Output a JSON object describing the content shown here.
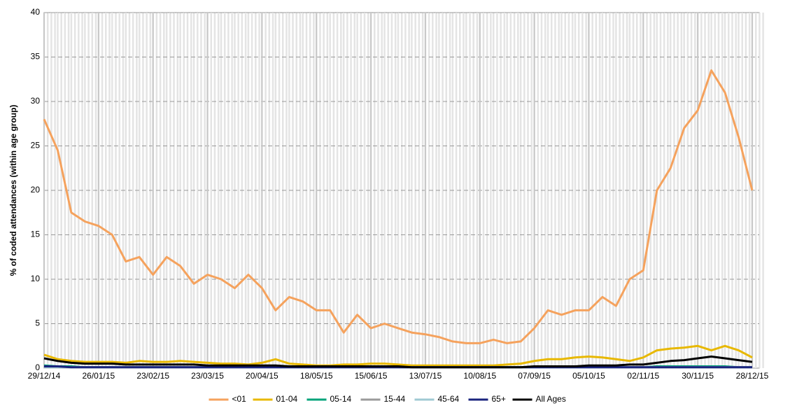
{
  "chart_data": {
    "type": "line",
    "y_label": "% of coded attendances (within age group)",
    "x": [
      "29/12/14",
      "05/01/15",
      "12/01/15",
      "19/01/15",
      "26/01/15",
      "02/02/15",
      "09/02/15",
      "16/02/15",
      "23/02/15",
      "02/03/15",
      "09/03/15",
      "16/03/15",
      "23/03/15",
      "30/03/15",
      "06/04/15",
      "13/04/15",
      "20/04/15",
      "27/04/15",
      "04/05/15",
      "11/05/15",
      "18/05/15",
      "25/05/15",
      "01/06/15",
      "08/06/15",
      "15/06/15",
      "22/06/15",
      "29/06/15",
      "06/07/15",
      "13/07/15",
      "20/07/15",
      "27/07/15",
      "03/08/15",
      "10/08/15",
      "17/08/15",
      "24/08/15",
      "31/08/15",
      "07/09/15",
      "14/09/15",
      "21/09/15",
      "28/09/15",
      "05/10/15",
      "12/10/15",
      "19/10/15",
      "26/10/15",
      "02/11/15",
      "09/11/15",
      "16/11/15",
      "23/11/15",
      "30/11/15",
      "07/12/15",
      "14/12/15",
      "21/12/15",
      "28/12/15"
    ],
    "xlim": [
      "29/12/14",
      "28/12/15"
    ],
    "xticks": [
      "29/12/14",
      "26/01/15",
      "23/02/15",
      "23/03/15",
      "20/04/15",
      "18/05/15",
      "15/06/15",
      "13/07/15",
      "10/08/15",
      "07/09/15",
      "05/10/15",
      "02/11/15",
      "30/11/15",
      "28/12/15"
    ],
    "ylim": [
      0,
      40
    ],
    "yticks": [
      0,
      5,
      10,
      15,
      20,
      25,
      30,
      35,
      40
    ],
    "grid": true,
    "legend": "bottom",
    "series": [
      {
        "name": "<01",
        "color": "#f5a25d",
        "values": [
          28,
          24.5,
          17.5,
          16.5,
          16,
          15,
          12,
          12.5,
          10.5,
          12.5,
          11.5,
          9.5,
          10.5,
          10,
          9,
          10.5,
          9,
          6.5,
          8,
          7.5,
          6.5,
          6.5,
          4,
          6,
          4.5,
          5,
          4.5,
          4,
          3.8,
          3.5,
          3,
          2.8,
          2.8,
          3.2,
          2.8,
          3,
          4.5,
          6.5,
          6,
          6.5,
          6.5,
          8,
          7,
          10,
          11,
          20,
          22.5,
          27,
          29,
          33.5,
          31,
          26,
          20
        ]
      },
      {
        "name": "01-04",
        "color": "#e8b800",
        "values": [
          1.5,
          1.0,
          0.8,
          0.7,
          0.7,
          0.7,
          0.6,
          0.8,
          0.7,
          0.7,
          0.8,
          0.7,
          0.6,
          0.5,
          0.5,
          0.4,
          0.6,
          1.0,
          0.5,
          0.4,
          0.3,
          0.3,
          0.4,
          0.4,
          0.5,
          0.5,
          0.4,
          0.3,
          0.3,
          0.3,
          0.3,
          0.3,
          0.3,
          0.3,
          0.4,
          0.5,
          0.8,
          1.0,
          1.0,
          1.2,
          1.3,
          1.2,
          1.0,
          0.8,
          1.2,
          2.0,
          2.2,
          2.3,
          2.5,
          2.0,
          2.5,
          2.0,
          1.2
        ]
      },
      {
        "name": "05-14",
        "color": "#00a37a",
        "values": [
          0.3,
          0.2,
          0.2,
          0.1,
          0.1,
          0.1,
          0.1,
          0.1,
          0.1,
          0.1,
          0.1,
          0.1,
          0.1,
          0.1,
          0.1,
          0.1,
          0.1,
          0.1,
          0.1,
          0.1,
          0.1,
          0.1,
          0.1,
          0.1,
          0.1,
          0.1,
          0.1,
          0.1,
          0.1,
          0.1,
          0.1,
          0.1,
          0.1,
          0.1,
          0.1,
          0.1,
          0.1,
          0.1,
          0.1,
          0.1,
          0.1,
          0.1,
          0.1,
          0.1,
          0.1,
          0.2,
          0.2,
          0.2,
          0.2,
          0.2,
          0.2,
          0.1,
          0.1
        ]
      },
      {
        "name": "15-44",
        "color": "#9a9a9a",
        "values": [
          0.1,
          0.1,
          0.1,
          0.1,
          0.1,
          0.1,
          0.1,
          0.1,
          0.1,
          0.1,
          0.1,
          0.1,
          0.1,
          0.1,
          0.1,
          0.1,
          0.1,
          0.1,
          0.1,
          0.1,
          0.1,
          0.1,
          0.1,
          0.1,
          0.1,
          0.1,
          0.1,
          0.1,
          0.1,
          0.1,
          0.1,
          0.1,
          0.1,
          0.1,
          0.1,
          0.1,
          0.1,
          0.1,
          0.1,
          0.1,
          0.1,
          0.1,
          0.1,
          0.1,
          0.1,
          0.1,
          0.1,
          0.1,
          0.1,
          0.1,
          0.1,
          0.1,
          0.1
        ]
      },
      {
        "name": "45-64",
        "color": "#9fc9d3",
        "values": [
          0.1,
          0.1,
          0.1,
          0.1,
          0.1,
          0.1,
          0.1,
          0.1,
          0.1,
          0.1,
          0.1,
          0.1,
          0.1,
          0.1,
          0.1,
          0.1,
          0.1,
          0.1,
          0.1,
          0.1,
          0.1,
          0.1,
          0.1,
          0.1,
          0.1,
          0.1,
          0.1,
          0.1,
          0.1,
          0.1,
          0.1,
          0.1,
          0.1,
          0.1,
          0.1,
          0.1,
          0.1,
          0.1,
          0.1,
          0.1,
          0.1,
          0.1,
          0.1,
          0.1,
          0.1,
          0.1,
          0.1,
          0.1,
          0.1,
          0.1,
          0.1,
          0.1,
          0.1
        ]
      },
      {
        "name": "65+",
        "color": "#1a237e",
        "values": [
          0.2,
          0.2,
          0.1,
          0.1,
          0.1,
          0.1,
          0.1,
          0.1,
          0.1,
          0.1,
          0.1,
          0.1,
          0.1,
          0.1,
          0.1,
          0.1,
          0.1,
          0.1,
          0.1,
          0.1,
          0.1,
          0.1,
          0.1,
          0.1,
          0.1,
          0.1,
          0.1,
          0.1,
          0.1,
          0.1,
          0.1,
          0.1,
          0.1,
          0.1,
          0.1,
          0.1,
          0.1,
          0.1,
          0.1,
          0.1,
          0.1,
          0.1,
          0.1,
          0.1,
          0.1,
          0.1,
          0.1,
          0.1,
          0.1,
          0.1,
          0.1,
          0.1,
          0.1
        ]
      },
      {
        "name": "All Ages",
        "color": "#000000",
        "values": [
          1.1,
          0.8,
          0.6,
          0.5,
          0.5,
          0.5,
          0.4,
          0.4,
          0.4,
          0.4,
          0.4,
          0.4,
          0.3,
          0.3,
          0.3,
          0.3,
          0.3,
          0.3,
          0.2,
          0.2,
          0.2,
          0.2,
          0.2,
          0.2,
          0.2,
          0.2,
          0.2,
          0.1,
          0.1,
          0.1,
          0.1,
          0.1,
          0.1,
          0.1,
          0.1,
          0.1,
          0.2,
          0.2,
          0.2,
          0.2,
          0.3,
          0.3,
          0.3,
          0.4,
          0.4,
          0.6,
          0.8,
          0.9,
          1.1,
          1.3,
          1.1,
          0.9,
          0.7
        ]
      }
    ]
  }
}
